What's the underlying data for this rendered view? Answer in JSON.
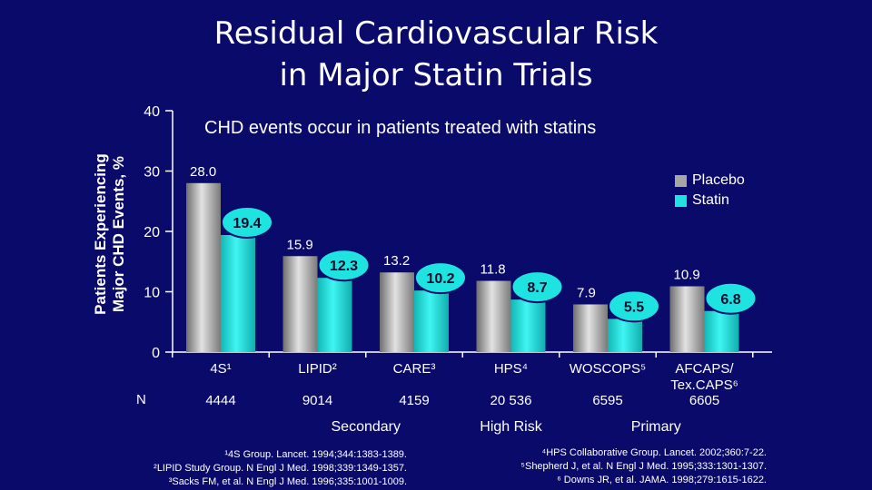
{
  "title_lines": [
    "Residual Cardiovascular Risk",
    "in Major Statin Trials"
  ],
  "subtitle": "CHD events occur in patients treated with statins",
  "ylabel_lines": [
    "Patients Experiencing",
    "Major CHD Events, %"
  ],
  "n_label": "N",
  "groups": [
    {
      "label": "Secondary",
      "center_trial": 1.5
    },
    {
      "label": "High Risk",
      "center_trial": 3
    },
    {
      "label": "Primary",
      "center_trial": 4.5
    }
  ],
  "refs_left": [
    "¹4S Group. Lancet. 1994;344:1383-1389.",
    "²LIPID Study Group. N Engl J Med. 1998;339:1349-1357.",
    "³Sacks FM, et al. N Engl J Med. 1996;335:1001-1009."
  ],
  "refs_right": [
    "⁴HPS Collaborative Group. Lancet. 2002;360:7-22.",
    "⁵Shepherd J, et al. N Engl J Med. 1995;333:1301-1307.",
    "⁶ Downs JR, et al. JAMA. 1998;279:1615-1622."
  ],
  "chart_data": {
    "type": "bar",
    "ylim": [
      0,
      40
    ],
    "yticks": [
      0,
      10,
      20,
      30,
      40
    ],
    "categories": [
      "4S¹",
      "LIPID²",
      "CARE³",
      "HPS⁴",
      "WOSCOPS⁵",
      "AFCAPS/ Tex.CAPS⁶"
    ],
    "category_lines": [
      [
        "4S¹"
      ],
      [
        "LIPID²"
      ],
      [
        "CARE³"
      ],
      [
        "HPS⁴"
      ],
      [
        "WOSCOPS⁵"
      ],
      [
        "AFCAPS/",
        "Tex.CAPS⁶"
      ]
    ],
    "n_values": [
      "4444",
      "9014",
      "4159",
      "20 536",
      "6595",
      "6605"
    ],
    "series": [
      {
        "name": "Placebo",
        "color": "#a6a6a6",
        "values": [
          28.0,
          15.9,
          13.2,
          11.8,
          7.9,
          10.9
        ],
        "labels": [
          "28.0",
          "15.9",
          "13.2",
          "11.8",
          "7.9",
          "10.9"
        ]
      },
      {
        "name": "Statin",
        "color": "#1ee3e0",
        "values": [
          19.4,
          12.3,
          10.2,
          8.7,
          5.5,
          6.8
        ],
        "labels": [
          "19.4",
          "12.3",
          "10.2",
          "8.7",
          "5.5",
          "6.8"
        ]
      }
    ],
    "legend_position": "top-right",
    "grid": false
  }
}
